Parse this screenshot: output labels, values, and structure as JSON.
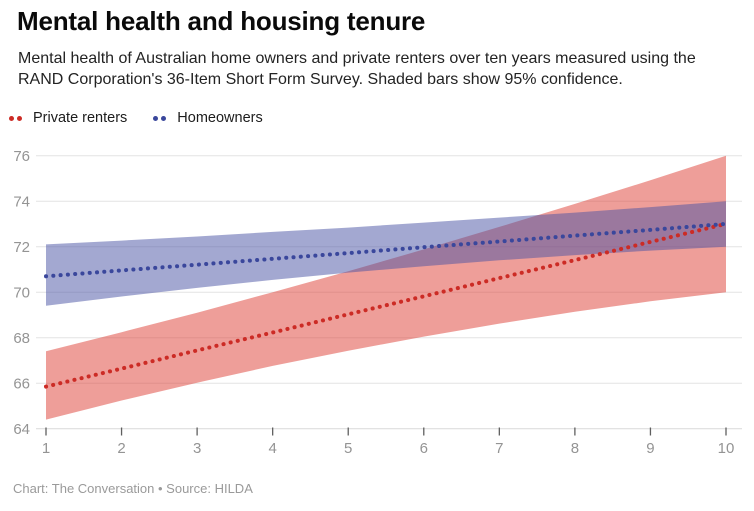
{
  "header": {
    "title": "Mental health and housing tenure",
    "subtitle": "Mental health of Australian home owners and private renters over ten years measured using the RAND Corporation's 36-Item Short Form Survey. Shaded bars show 95% confidence."
  },
  "legend": {
    "items": [
      {
        "label": "Private renters",
        "color": "#cc2b25"
      },
      {
        "label": "Homeowners",
        "color": "#3a479c"
      }
    ]
  },
  "footer": {
    "text": "Chart: The Conversation • Source: HILDA"
  },
  "colors": {
    "renters_line": "#cc2b25",
    "renters_band": "rgba(221,61,51,0.5)",
    "homeowners_line": "#3a479c",
    "homeowners_band": "rgba(71,81,163,0.5)",
    "gridline": "#e4e4e4",
    "baseline": "#d9d9d9",
    "tick_mark": "#5f5f5f",
    "tick_label": "#949494"
  },
  "chart_data": {
    "type": "line",
    "x": [
      1,
      2,
      3,
      4,
      5,
      6,
      7,
      8,
      9,
      10
    ],
    "x_ticks": [
      1,
      2,
      3,
      4,
      5,
      6,
      7,
      8,
      9,
      10
    ],
    "y_ticks": [
      64,
      66,
      68,
      70,
      72,
      74,
      76
    ],
    "xlim": [
      1,
      10
    ],
    "ylim": [
      64,
      76
    ],
    "grid": true,
    "legend_position": "top-left",
    "line_style": "dotted",
    "band_meaning": "95% confidence interval",
    "series": [
      {
        "name": "Private renters",
        "values": [
          65.85,
          66.64,
          67.44,
          68.23,
          69.03,
          69.82,
          70.62,
          71.41,
          72.21,
          73.0
        ],
        "band_lower": [
          64.4,
          65.24,
          66.02,
          66.76,
          67.43,
          68.05,
          68.62,
          69.14,
          69.6,
          70.0
        ],
        "band_upper": [
          67.4,
          68.24,
          69.1,
          70.0,
          70.92,
          71.88,
          72.87,
          73.88,
          74.92,
          76.0
        ]
      },
      {
        "name": "Homeowners",
        "values": [
          70.7,
          70.96,
          71.21,
          71.47,
          71.72,
          71.98,
          72.23,
          72.49,
          72.74,
          73.0
        ],
        "band_lower": [
          69.4,
          69.81,
          70.19,
          70.54,
          70.86,
          71.14,
          71.4,
          71.63,
          71.83,
          72.0
        ],
        "band_upper": [
          72.1,
          72.27,
          72.45,
          72.65,
          72.84,
          73.06,
          73.28,
          73.5,
          73.74,
          74.0
        ]
      }
    ]
  }
}
